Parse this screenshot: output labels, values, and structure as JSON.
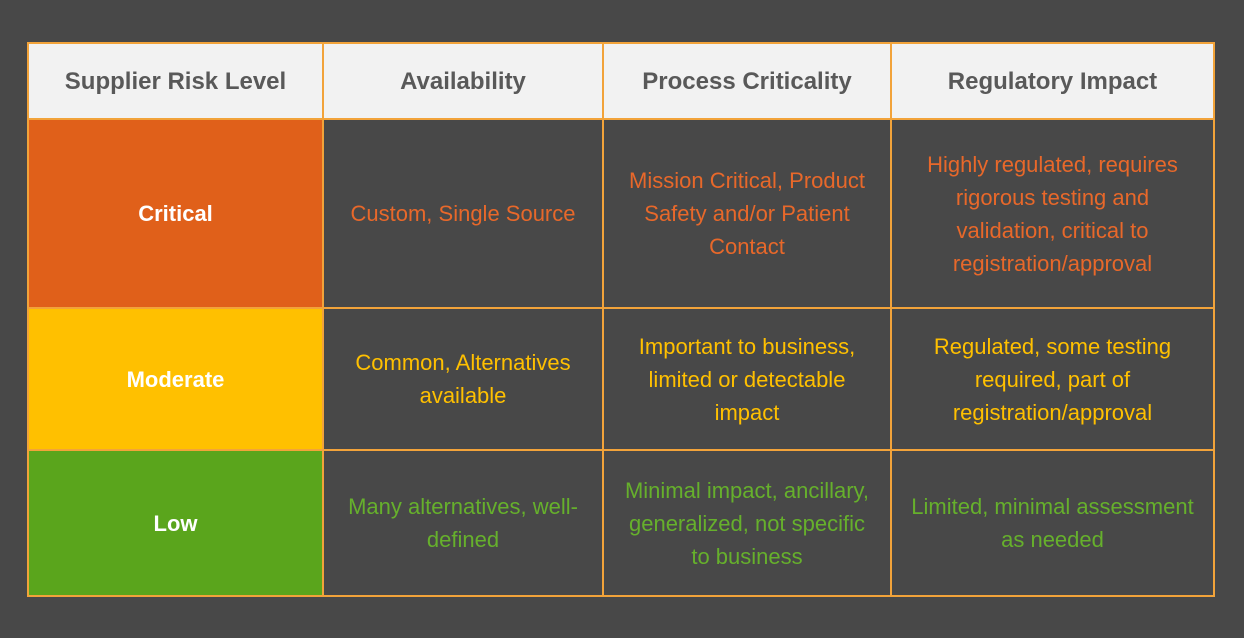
{
  "table": {
    "header": [
      "Supplier Risk Level",
      "Availability",
      "Process Criticality",
      "Regulatory Impact"
    ],
    "rows": [
      [
        "Critical",
        "Custom, Single Source",
        "Mission Critical, Product Safety and/or Patient Contact",
        "Highly regulated, requires rigorous testing and validation, critical to registration/approval"
      ],
      [
        "Moderate",
        "Common, Alternatives available",
        "Important to business, limited or detectable impact",
        "Regulated, some testing required, part of registration/approval"
      ],
      [
        "Low",
        "Many alternatives, well-defined",
        "Minimal impact, ancillary, generalized, not specific to business",
        "Limited, minimal assessment as needed"
      ]
    ]
  }
}
